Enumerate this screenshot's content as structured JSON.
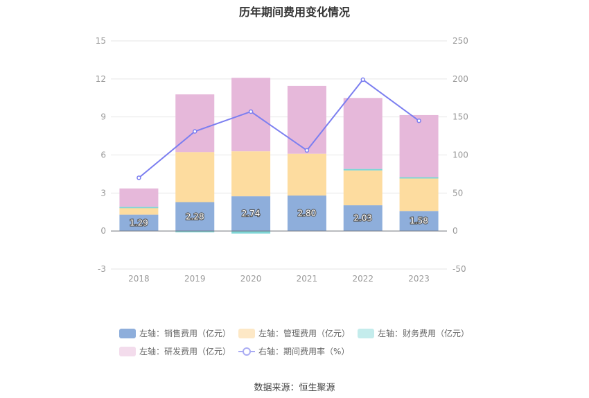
{
  "chart_data": {
    "type": "bar",
    "title": "历年期间费用变化情况",
    "categories": [
      "2018",
      "2019",
      "2020",
      "2021",
      "2022",
      "2023"
    ],
    "left_axis": {
      "ylim": [
        -3,
        15
      ],
      "ticks": [
        "-3",
        "0",
        "3",
        "6",
        "9",
        "12",
        "15"
      ]
    },
    "right_axis": {
      "ylim": [
        -50,
        250
      ],
      "ticks": [
        "-50",
        "0",
        "50",
        "100",
        "150",
        "200",
        "250"
      ]
    },
    "series": [
      {
        "name": "左轴：销售费用（亿元）",
        "type": "bar",
        "axis": "left",
        "color": "#8eaedb",
        "values": [
          1.29,
          2.28,
          2.74,
          2.8,
          2.03,
          1.58
        ],
        "labels": [
          "1.29",
          "2.28",
          "2.74",
          "2.80",
          "2.03",
          "1.58"
        ]
      },
      {
        "name": "左轴：管理费用（亿元）",
        "type": "bar",
        "axis": "left",
        "color": "#fddc9f",
        "values": [
          0.6,
          3.95,
          3.55,
          3.3,
          2.75,
          2.65
        ]
      },
      {
        "name": "左轴：财务费用（亿元）",
        "type": "bar",
        "axis": "left",
        "color": "#7fd6d6",
        "values": [
          0.02,
          -0.1,
          -0.2,
          0.0,
          0.12,
          0.02
        ]
      },
      {
        "name": "左轴：研发费用（亿元）",
        "type": "bar",
        "axis": "left",
        "color": "#e6b8da",
        "values": [
          1.45,
          4.55,
          5.8,
          5.35,
          5.6,
          4.9
        ]
      },
      {
        "name": "右轴：期间费用率（%）",
        "type": "line",
        "axis": "right",
        "color": "#7b7ef0",
        "values": [
          70,
          131,
          157,
          106,
          199,
          145
        ]
      }
    ],
    "grid": true,
    "legend_position": "bottom"
  },
  "source": "数据来源：恒生聚源"
}
